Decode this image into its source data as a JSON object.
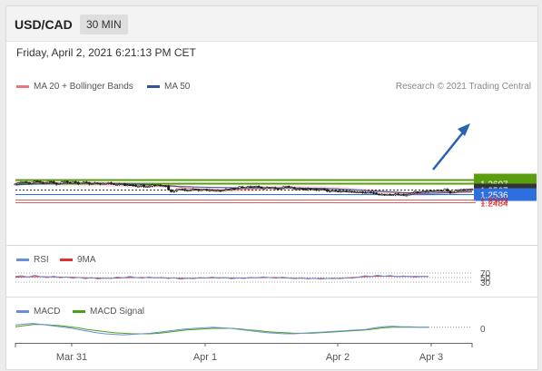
{
  "header": {
    "symbol": "USD/CAD",
    "timeframe": "30 MIN"
  },
  "date_text": "Friday, April 2, 2021 6:21:13 PM CET",
  "copyright": "Research © 2021 Trading Central",
  "chart_data": [
    {
      "type": "line",
      "legend": [
        "MA 20 + Bollinger Bands",
        "MA 50"
      ],
      "x_ticks": [
        "Mar 31",
        "Apr 1",
        "Apr 2",
        "Apr 3"
      ],
      "levels": [
        {
          "value": 1.2627,
          "label": "1.2627",
          "color": "#5a9e0f"
        },
        {
          "value": 1.2607,
          "label": "1.2607",
          "color": "#5a9e0f"
        },
        {
          "value": 1.2567,
          "label": "1.2567",
          "color": "#333333"
        },
        {
          "value": 1.2536,
          "label": "1.2536",
          "color": "#2e6fe0"
        },
        {
          "value": 1.2503,
          "label": "1.2503",
          "color": "#e06060"
        },
        {
          "value": 1.2484,
          "label": "1.2484",
          "color": "#e06060"
        }
      ],
      "price_close": [
        1.2601,
        1.2608,
        1.2612,
        1.2615,
        1.2609,
        1.2604,
        1.2612,
        1.2619,
        1.2618,
        1.2612,
        1.2606,
        1.2608,
        1.2617,
        1.2616,
        1.2608,
        1.2599,
        1.2603,
        1.2613,
        1.2618,
        1.2611,
        1.2606,
        1.2616,
        1.2611,
        1.2602,
        1.2607,
        1.2613,
        1.2611,
        1.2601,
        1.2602,
        1.2608,
        1.2605,
        1.2601,
        1.2604,
        1.2604,
        1.2609,
        1.2604,
        1.2597,
        1.2597,
        1.2601,
        1.2603,
        1.2591,
        1.2596,
        1.2595,
        1.2593,
        1.2586,
        1.2587,
        1.2594,
        1.2584,
        1.2584,
        1.2587,
        1.2595,
        1.2591,
        1.2594,
        1.2589,
        1.259,
        1.2589,
        1.2564,
        1.2551,
        1.2558,
        1.2565,
        1.2567,
        1.2566,
        1.256,
        1.2561,
        1.2562,
        1.2568,
        1.2566,
        1.256,
        1.2564,
        1.2567,
        1.2561,
        1.2564,
        1.256,
        1.256,
        1.256,
        1.2559,
        1.2561,
        1.2567,
        1.2566,
        1.2572,
        1.2571,
        1.2573,
        1.2583,
        1.258,
        1.258,
        1.2584,
        1.2582,
        1.2586,
        1.2586,
        1.2582,
        1.2574,
        1.2576,
        1.2579,
        1.2576,
        1.2578,
        1.2572,
        1.2571,
        1.2574,
        1.2582,
        1.2586,
        1.2579,
        1.2579,
        1.257,
        1.257,
        1.2572,
        1.2569,
        1.2566,
        1.2572,
        1.2567,
        1.2568,
        1.2562,
        1.2568,
        1.2568,
        1.2565,
        1.2555,
        1.2557,
        1.2559,
        1.2556,
        1.2554,
        1.2555,
        1.2556,
        1.2552,
        1.2554,
        1.2552,
        1.2549,
        1.2549,
        1.255,
        1.2547,
        1.2545,
        1.2548,
        1.2546,
        1.2544,
        1.2536,
        1.2534,
        1.2535,
        1.2534,
        1.2534,
        1.2531,
        1.2532,
        1.2537,
        1.253,
        1.2534,
        1.253,
        1.253,
        1.2536,
        1.2544,
        1.2552,
        1.2547,
        1.2551,
        1.2555,
        1.2553,
        1.2558,
        1.2553,
        1.2557,
        1.2559,
        1.2559,
        1.2555,
        1.2567,
        1.2556,
        1.2545,
        1.2548,
        1.2559,
        1.2564,
        1.2565,
        1.256,
        1.2567,
        1.2567,
        1.2567
      ],
      "ma20": [
        1.2604,
        1.2606,
        1.2608,
        1.2609,
        1.2609,
        1.261,
        1.261,
        1.261,
        1.2609,
        1.2608,
        1.2608,
        1.2609,
        1.2608,
        1.2606,
        1.2605,
        1.2604,
        1.2605,
        1.2606,
        1.2607,
        1.2605,
        1.2604,
        1.2603,
        1.2602,
        1.2602,
        1.2603,
        1.2604,
        1.2604,
        1.2601,
        1.2599,
        1.2599,
        1.26,
        1.2598,
        1.2597,
        1.2596,
        1.2595,
        1.2594,
        1.2594,
        1.2593,
        1.2594,
        1.2593,
        1.2592,
        1.2593,
        1.2594,
        1.2593,
        1.2592,
        1.259,
        1.2591,
        1.259,
        1.2587,
        1.258,
        1.2576,
        1.2574,
        1.2573,
        1.2571,
        1.2569,
        1.2567,
        1.2566,
        1.2565,
        1.2564,
        1.2564,
        1.2564,
        1.2563,
        1.2562,
        1.2562,
        1.2562,
        1.2564,
        1.2565,
        1.2566,
        1.2567,
        1.2568,
        1.2569,
        1.257,
        1.2571,
        1.2572,
        1.2573,
        1.2573,
        1.2574,
        1.2575,
        1.2576,
        1.2577,
        1.2578,
        1.2577,
        1.2576,
        1.2576,
        1.2577,
        1.2576,
        1.2575,
        1.2575,
        1.2574,
        1.2574,
        1.2573,
        1.2573,
        1.2572,
        1.2571,
        1.257,
        1.257,
        1.2569,
        1.2568,
        1.2567,
        1.2566,
        1.2564,
        1.2563,
        1.2562,
        1.256,
        1.2558,
        1.2557,
        1.2555,
        1.2553,
        1.2552,
        1.2551,
        1.255,
        1.2549,
        1.2548,
        1.2546,
        1.2545,
        1.2543,
        1.2541,
        1.254,
        1.2539,
        1.2538,
        1.2538,
        1.2538,
        1.2539,
        1.254,
        1.2541,
        1.2542,
        1.2544,
        1.2545,
        1.2547,
        1.2549,
        1.255,
        1.2552,
        1.2553,
        1.2554,
        1.2555,
        1.2556,
        1.2557
      ],
      "ma50": [
        1.2594,
        1.2596,
        1.2598,
        1.2599,
        1.2601,
        1.2602,
        1.2603,
        1.2604,
        1.2605,
        1.2605,
        1.2606,
        1.2606,
        1.2606,
        1.2606,
        1.2606,
        1.2606,
        1.2605,
        1.2605,
        1.2604,
        1.2603,
        1.2602,
        1.2601,
        1.26,
        1.2599,
        1.2597,
        1.2595,
        1.2593,
        1.2591,
        1.2589,
        1.2587,
        1.2585,
        1.2584,
        1.2583,
        1.2582,
        1.2581,
        1.258,
        1.2579,
        1.2579,
        1.2578,
        1.2578,
        1.2577,
        1.2577,
        1.2576,
        1.2576,
        1.2576,
        1.2576,
        1.2576,
        1.2576,
        1.2576,
        1.2576,
        1.2575,
        1.2575,
        1.2575,
        1.2574,
        1.2574,
        1.2573,
        1.2573,
        1.2572,
        1.2571,
        1.257,
        1.2568,
        1.2566,
        1.2564,
        1.2562,
        1.256,
        1.2558,
        1.2556,
        1.2554,
        1.2552,
        1.255,
        1.2548,
        1.2546,
        1.2545,
        1.2544,
        1.2543,
        1.2542,
        1.2542,
        1.2542,
        1.2543,
        1.2544,
        1.2545,
        1.2547,
        1.2548,
        1.2549,
        1.255
      ]
    },
    {
      "type": "line",
      "legend": [
        "RSI",
        "9MA"
      ],
      "y_ticks": [
        "70",
        "50",
        "30"
      ],
      "rsi": [
        55,
        58,
        52,
        60,
        54,
        50,
        56,
        49,
        53,
        47,
        51,
        45,
        50,
        44,
        48,
        46,
        52,
        49,
        55,
        50,
        47,
        53,
        48,
        51,
        46,
        49,
        43,
        47,
        45,
        50,
        48,
        52,
        47,
        50,
        45,
        48,
        46,
        51,
        49,
        53,
        50,
        47,
        52,
        48,
        45,
        49,
        44,
        47,
        43,
        46,
        48,
        45,
        49,
        47,
        52,
        58,
        55,
        60,
        56,
        59,
        54,
        57,
        55,
        52,
        56,
        54
      ],
      "ma9": [
        52,
        53,
        53,
        54,
        54,
        53,
        53,
        52,
        52,
        51,
        50,
        49,
        48,
        48,
        47,
        47,
        48,
        49,
        50,
        50,
        50,
        50,
        49,
        49,
        48,
        48,
        47,
        47,
        47,
        48,
        48,
        49,
        49,
        49,
        48,
        48,
        48,
        49,
        49,
        50,
        50,
        50,
        49,
        48,
        47,
        47,
        46,
        46,
        46,
        46,
        46,
        47,
        48,
        50,
        52,
        54,
        55,
        56,
        56,
        56,
        55,
        55,
        55,
        55,
        55,
        55
      ]
    },
    {
      "type": "line",
      "legend": [
        "MACD",
        "MACD Signal"
      ],
      "y_ticks": [
        "0"
      ],
      "macd": [
        0.6,
        0.8,
        0.9,
        0.7,
        0.5,
        0.3,
        0.1,
        -0.2,
        -0.5,
        -0.8,
        -1.0,
        -1.1,
        -1.2,
        -1.1,
        -1.0,
        -0.9,
        -0.7,
        -0.5,
        -0.3,
        -0.1,
        0.0,
        0.1,
        0.2,
        0.1,
        0.0,
        -0.2,
        -0.4,
        -0.6,
        -0.8,
        -0.9,
        -1.0,
        -1.0,
        -0.9,
        -0.8,
        -0.7,
        -0.6,
        -0.5,
        -0.4,
        -0.3,
        -0.2,
        0.1,
        0.3,
        0.4,
        0.3,
        0.3,
        0.2,
        0.2
      ],
      "signal": [
        0.3,
        0.5,
        0.7,
        0.7,
        0.6,
        0.5,
        0.3,
        0.1,
        -0.2,
        -0.4,
        -0.6,
        -0.8,
        -0.9,
        -1.0,
        -1.0,
        -1.0,
        -0.9,
        -0.7,
        -0.5,
        -0.3,
        -0.2,
        -0.1,
        0.0,
        0.0,
        0.0,
        -0.1,
        -0.3,
        -0.4,
        -0.6,
        -0.7,
        -0.8,
        -0.9,
        -0.9,
        -0.9,
        -0.8,
        -0.7,
        -0.6,
        -0.5,
        -0.4,
        -0.3,
        -0.1,
        0.1,
        0.2,
        0.2,
        0.2,
        0.2,
        0.2
      ]
    }
  ],
  "colors": {
    "bb_fill": "#fadcdc",
    "ma20": "#e8777a",
    "ma50": "#2f5595",
    "rsi": "#6a8fd8",
    "ma9": "#e03030",
    "macd": "#6a8fd8",
    "macd_signal": "#4aa01a",
    "arrow": "#2a63b0"
  }
}
